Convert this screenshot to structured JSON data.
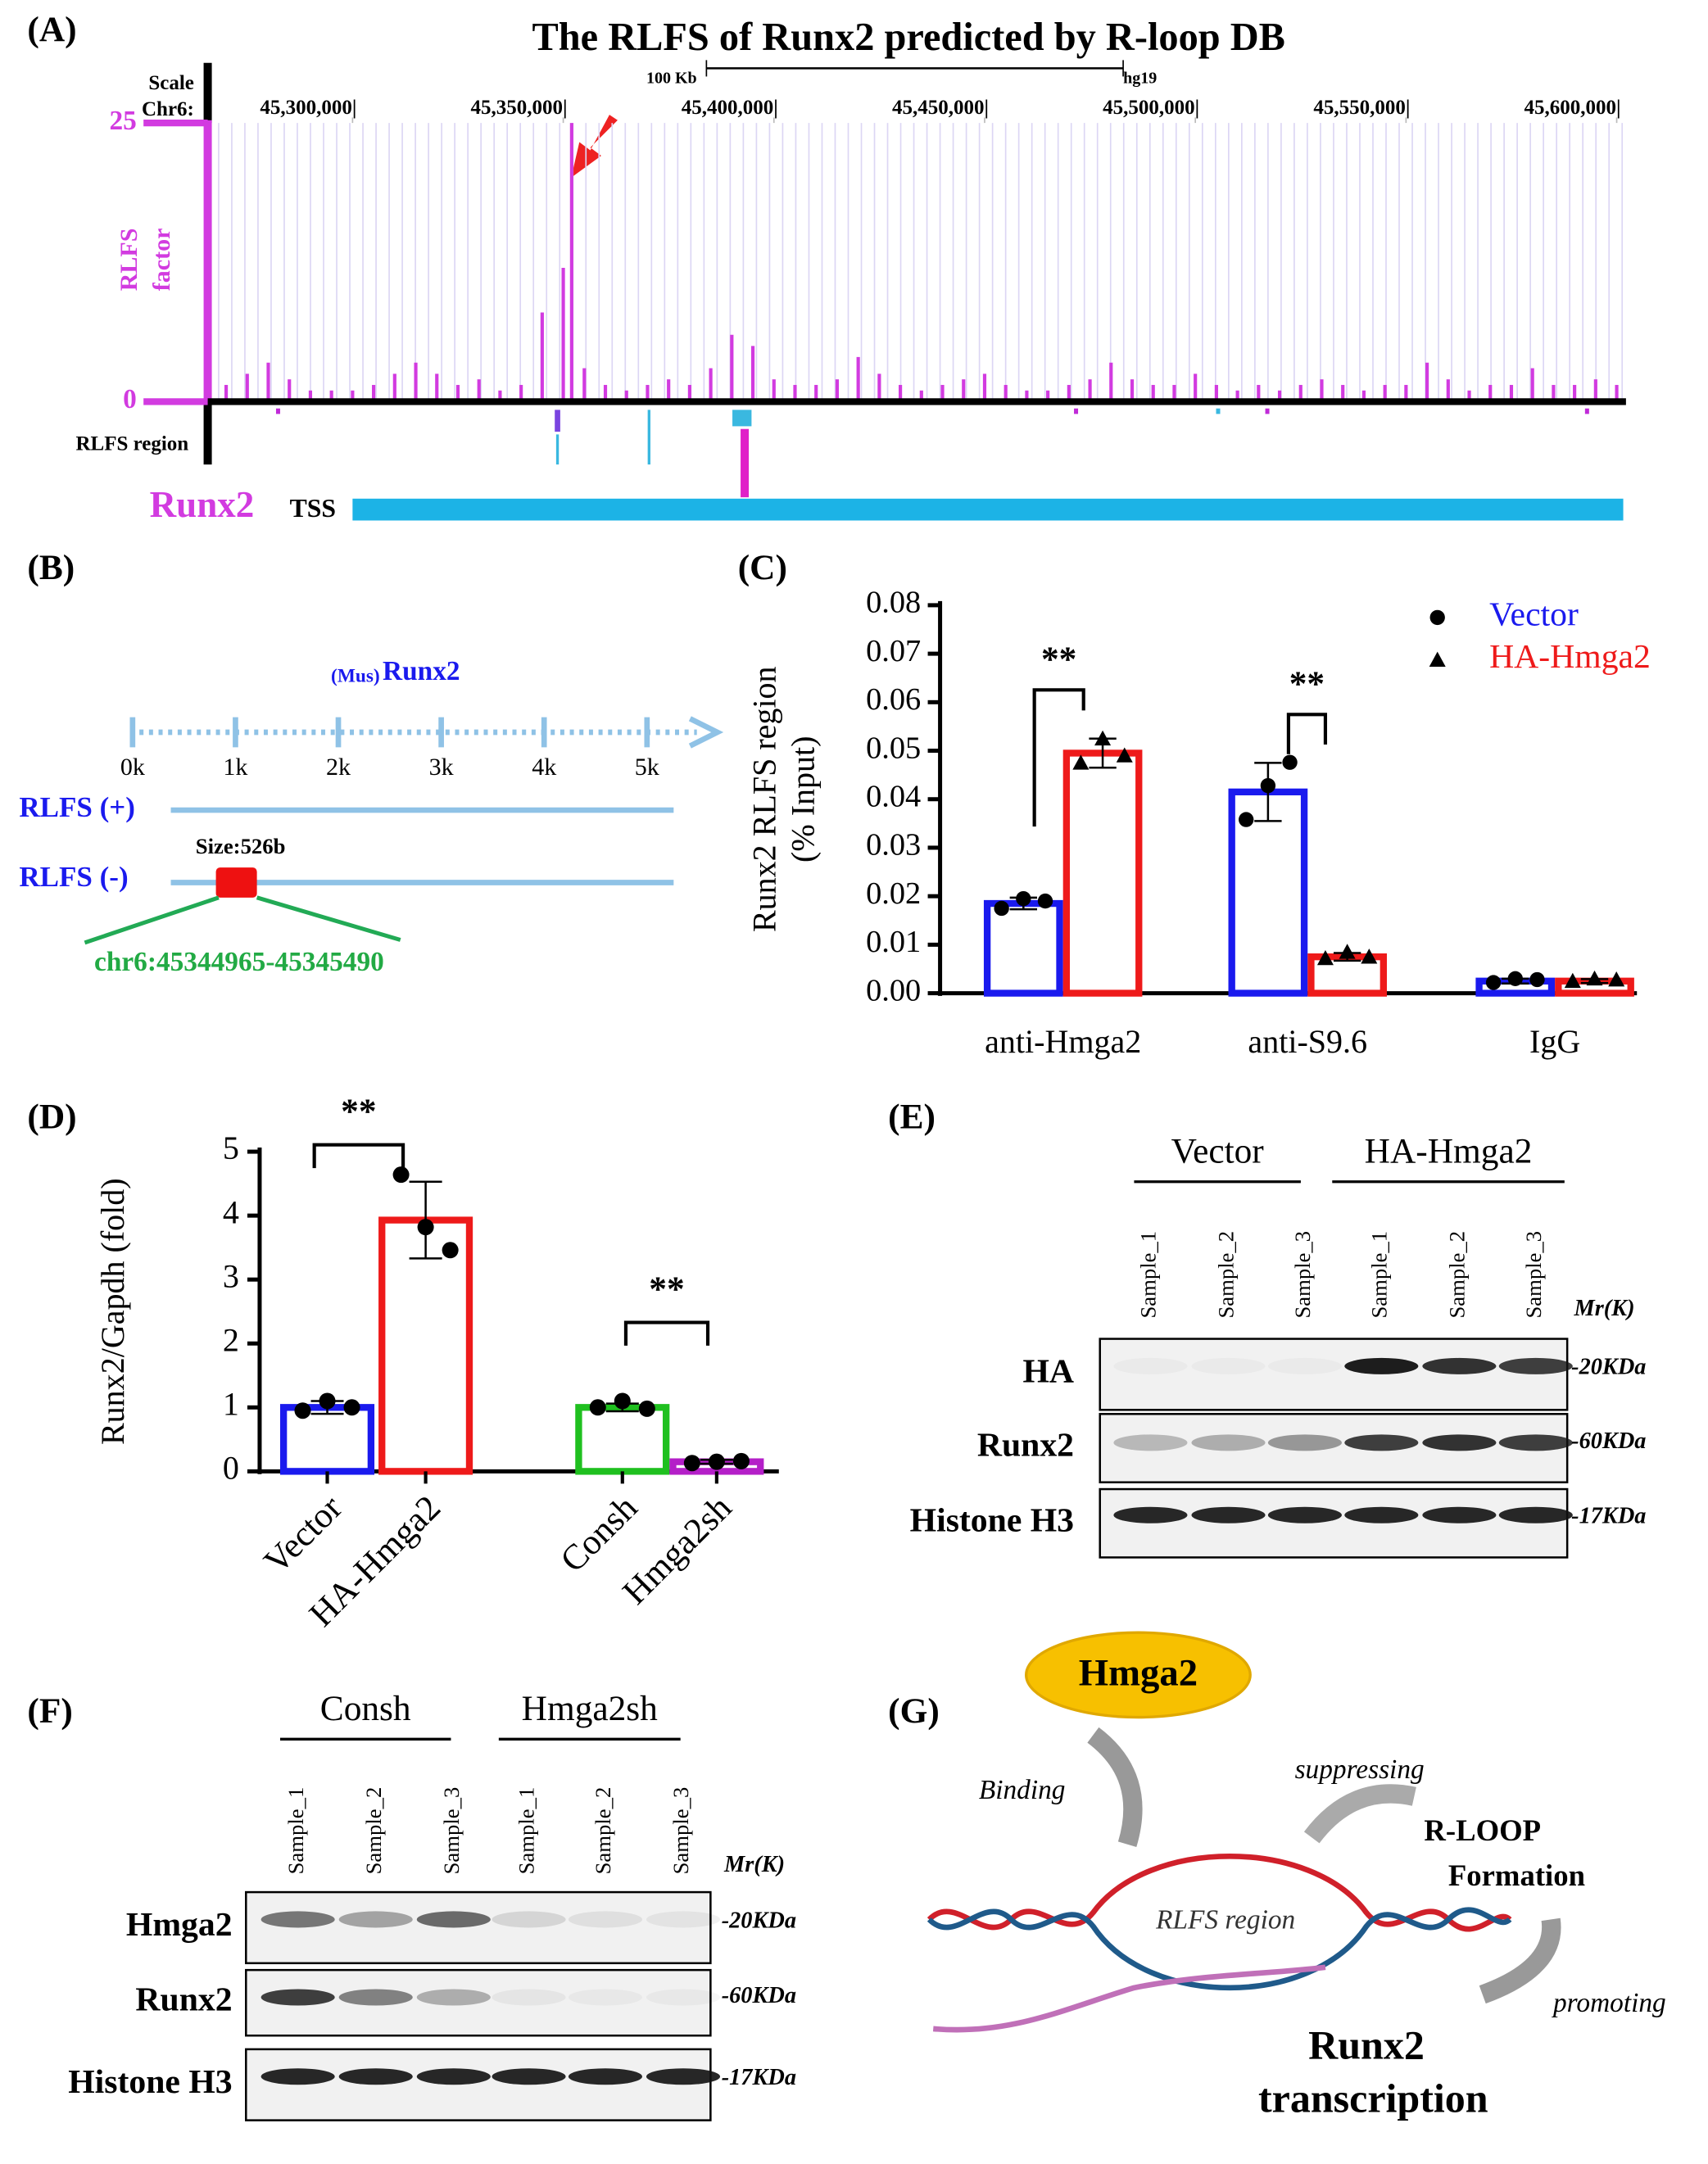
{
  "chart_data": [
    {
      "type": "track",
      "panel": "(A)",
      "title": "The RLFS of Runx2 predicted by R-loop DB",
      "scale_label": "Scale",
      "chrom_label": "Chr6:",
      "scale_bar_label": "100 Kb",
      "assembly": "hg19",
      "y_label": [
        "RLFS",
        "factor"
      ],
      "track_label": "RLFS region",
      "gene": "Runx2",
      "tss_label": "TSS",
      "color": "#d23be0",
      "xlim": [
        45266600,
        45602200
      ],
      "xticks": [
        {
          "value": 45300000,
          "label": "45,300,000|"
        },
        {
          "value": 45350000,
          "label": "45,350,000|"
        },
        {
          "value": 45400000,
          "label": "45,400,000|"
        },
        {
          "value": 45450000,
          "label": "45,450,000|"
        },
        {
          "value": 45500000,
          "label": "45,500,000|"
        },
        {
          "value": 45550000,
          "label": "45,550,000|"
        },
        {
          "value": 45600000,
          "label": "45,600,000|"
        }
      ],
      "ylim": [
        0,
        25
      ],
      "yticks": [
        0,
        25
      ],
      "x": [
        45270000,
        45275000,
        45280000,
        45285000,
        45290000,
        45295000,
        45300000,
        45305000,
        45310000,
        45315000,
        45320000,
        45325000,
        45330000,
        45335000,
        45340000,
        45345000,
        45350000,
        45352000,
        45355000,
        45360000,
        45365000,
        45370000,
        45375000,
        45380000,
        45385000,
        45390000,
        45395000,
        45400000,
        45405000,
        45410000,
        45415000,
        45420000,
        45425000,
        45430000,
        45435000,
        45440000,
        45445000,
        45450000,
        45455000,
        45460000,
        45465000,
        45470000,
        45475000,
        45480000,
        45485000,
        45490000,
        45495000,
        45500000,
        45505000,
        45510000,
        45515000,
        45520000,
        45525000,
        45530000,
        45535000,
        45540000,
        45545000,
        45550000,
        45555000,
        45560000,
        45565000,
        45570000,
        45575000,
        45580000,
        45585000,
        45590000,
        45595000,
        45600000
      ],
      "values": [
        1.5,
        2.5,
        3.5,
        2,
        1,
        1,
        1,
        1.5,
        2.5,
        3.5,
        2.5,
        1.5,
        2,
        1,
        1.5,
        8,
        12,
        25,
        3,
        1.5,
        1,
        1.5,
        2,
        1.5,
        3,
        6,
        5,
        2,
        1.5,
        1.5,
        2,
        4,
        2.5,
        1.5,
        1,
        1.5,
        2,
        2.5,
        1.5,
        1,
        1,
        1.5,
        2,
        3.5,
        2,
        1.5,
        1.5,
        2.5,
        1.5,
        1,
        1.5,
        1,
        1.5,
        2,
        1.5,
        1,
        1.5,
        1.5,
        3.5,
        2,
        1,
        1.5,
        1.5,
        3,
        1.5,
        1.5,
        2,
        1.5
      ]
    },
    {
      "type": "grouped_bar",
      "panel": "(C)",
      "y_label": [
        "Runx2 RLFS region",
        "(% Input)"
      ],
      "categories": [
        "anti-Hmga2",
        "anti-S9.6",
        "IgG"
      ],
      "series": [
        {
          "name": "Vector",
          "color": "#1a1aee",
          "marker": "circle",
          "values": [
            0.0185,
            0.0415,
            0.0025
          ],
          "errors": [
            0.0012,
            0.006,
            0.0005
          ],
          "points": [
            [
              0.0175,
              0.0195,
              0.019
            ],
            [
              0.0358,
              0.0428,
              0.0476
            ],
            [
              0.0022,
              0.003,
              0.0028
            ]
          ]
        },
        {
          "name": "HA-Hmga2",
          "color": "#ee1a1a",
          "marker": "triangle",
          "values": [
            0.0495,
            0.0075,
            0.0025
          ],
          "errors": [
            0.003,
            0.0008,
            0.0004
          ],
          "points": [
            [
              0.0475,
              0.0525,
              0.049
            ],
            [
              0.0072,
              0.0085,
              0.0075
            ],
            [
              0.0025,
              0.003,
              0.0028
            ]
          ]
        }
      ],
      "ylim": [
        0,
        0.08
      ],
      "yticks": [
        {
          "value": 0,
          "label": "0.00"
        },
        0.01,
        0.02,
        0.03,
        0.04,
        0.05,
        0.06,
        0.07,
        0.08
      ],
      "significance": [
        "**",
        "**"
      ]
    },
    {
      "type": "bar",
      "panel": "(D)",
      "y_label": "Runx2/Gapdh (fold)",
      "categories": [
        "Vector",
        "HA-Hmga2",
        "Consh",
        "Hmga2sh"
      ],
      "values": [
        1.0,
        3.93,
        1.0,
        0.15
      ],
      "colors": [
        "#1a1aee",
        "#ee1a1a",
        "#1fc01f",
        "#b41fc8"
      ],
      "errors": [
        0.1,
        0.6,
        0.06,
        0.03
      ],
      "points": [
        [
          0.95,
          1.1,
          1.0
        ],
        [
          4.64,
          3.82,
          3.46
        ],
        [
          1.0,
          1.1,
          0.98
        ],
        [
          0.13,
          0.15,
          0.16
        ]
      ],
      "ylim": [
        0,
        5
      ],
      "yticks": [
        0,
        1,
        2,
        3,
        4,
        5
      ],
      "significance": [
        "**",
        "**"
      ]
    }
  ],
  "panel_b": {
    "label": "(B)",
    "species": "(Mus)",
    "gene": "Runx2",
    "scale_ticks": [
      "0k",
      "1k",
      "2k",
      "3k",
      "4k",
      "5k"
    ],
    "rows": [
      "RLFS (+)",
      "RLFS (-)"
    ],
    "size_label": "Size:526b",
    "coords": "chr6:45344965-45345490"
  },
  "panel_e": {
    "label": "(E)",
    "groups": [
      "Vector",
      "HA-Hmga2"
    ],
    "samples": [
      "Sample_1",
      "Sample_2",
      "Sample_3",
      "Sample_1",
      "Sample_2",
      "Sample_3"
    ],
    "mr_label": "Mr(K)",
    "rows": [
      {
        "name": "HA",
        "size": "-20KDa"
      },
      {
        "name": "Runx2",
        "size": "-60KDa"
      },
      {
        "name": "Histone H3",
        "size": "-17KDa"
      }
    ]
  },
  "panel_f": {
    "label": "(F)",
    "groups": [
      "Consh",
      "Hmga2sh"
    ],
    "samples": [
      "Sample_1",
      "Sample_2",
      "Sample_3",
      "Sample_1",
      "Sample_2",
      "Sample_3"
    ],
    "mr_label": "Mr(K)",
    "rows": [
      {
        "name": "Hmga2",
        "size": "-20KDa"
      },
      {
        "name": "Runx2",
        "size": "-60KDa"
      },
      {
        "name": "Histone H3",
        "size": "-17KDa"
      }
    ]
  },
  "panel_g": {
    "label": "(G)",
    "protein": "Hmga2",
    "binding": "Binding",
    "suppressing": "suppressing",
    "rloop": [
      "R-LOOP",
      "Formation"
    ],
    "region": "RLFS region",
    "promoting": "promoting",
    "outcome": [
      "Runx2",
      "transcription"
    ]
  }
}
